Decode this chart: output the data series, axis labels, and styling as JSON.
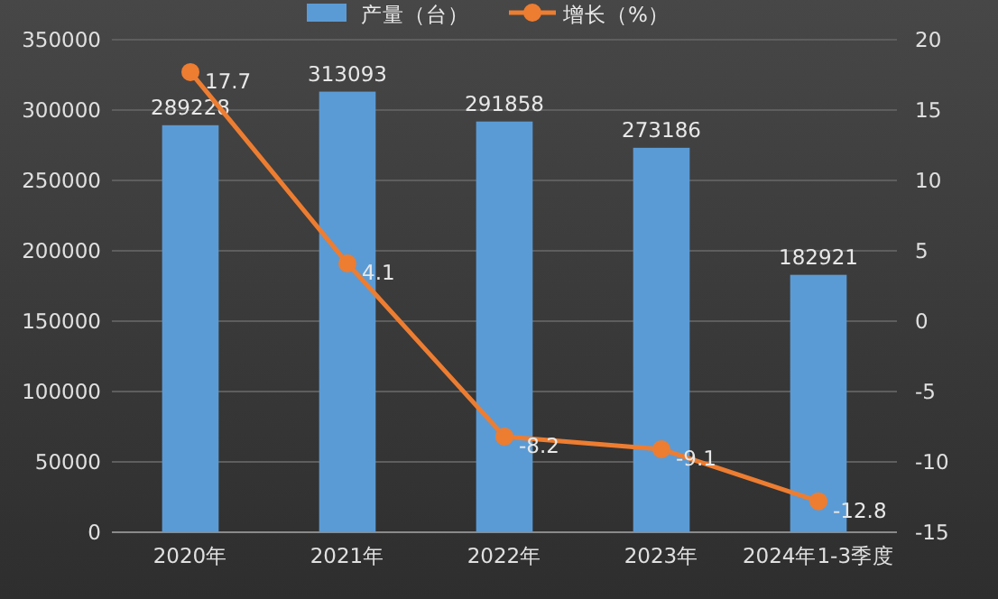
{
  "chart_data": {
    "type": "bar",
    "categories": [
      "2020年",
      "2021年",
      "2022年",
      "2023年",
      "2024年1-3季度"
    ],
    "series": [
      {
        "name": "产量（台）",
        "color": "#5b9bd5",
        "values": [
          289228,
          313093,
          291858,
          273186,
          182921
        ]
      },
      {
        "name": "增长（%）",
        "type": "line",
        "axis": "y2",
        "color": "#ed7d31",
        "values": [
          17.7,
          4.1,
          -8.2,
          -9.1,
          -12.8
        ]
      }
    ],
    "ylim": [
      0,
      350000
    ],
    "yticks": [
      0,
      50000,
      100000,
      150000,
      200000,
      250000,
      300000,
      350000
    ],
    "y2lim": [
      -15,
      20
    ],
    "y2ticks": [
      -15,
      -10,
      -5,
      0,
      5,
      10,
      15,
      20
    ],
    "grid": "y",
    "legend": "top",
    "marker": "circle",
    "data_labels": true
  }
}
